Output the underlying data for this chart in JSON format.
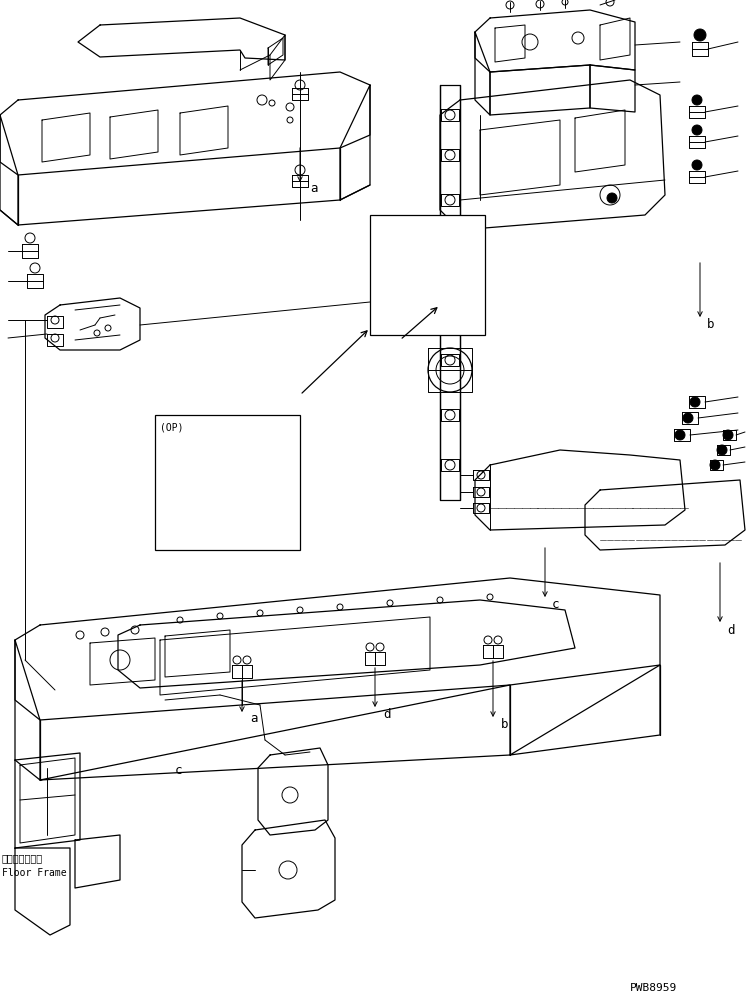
{
  "background_color": "#ffffff",
  "page_code": "PWB8959",
  "label_floor_frame_jp": "フロアフレーム",
  "label_floor_frame_en": "Floor Frame",
  "label_op": "(OP)",
  "label_a": "a",
  "label_b": "b",
  "label_c": "c",
  "label_d": "d",
  "fig_width": 7.53,
  "fig_height": 10.0,
  "dpi": 100
}
